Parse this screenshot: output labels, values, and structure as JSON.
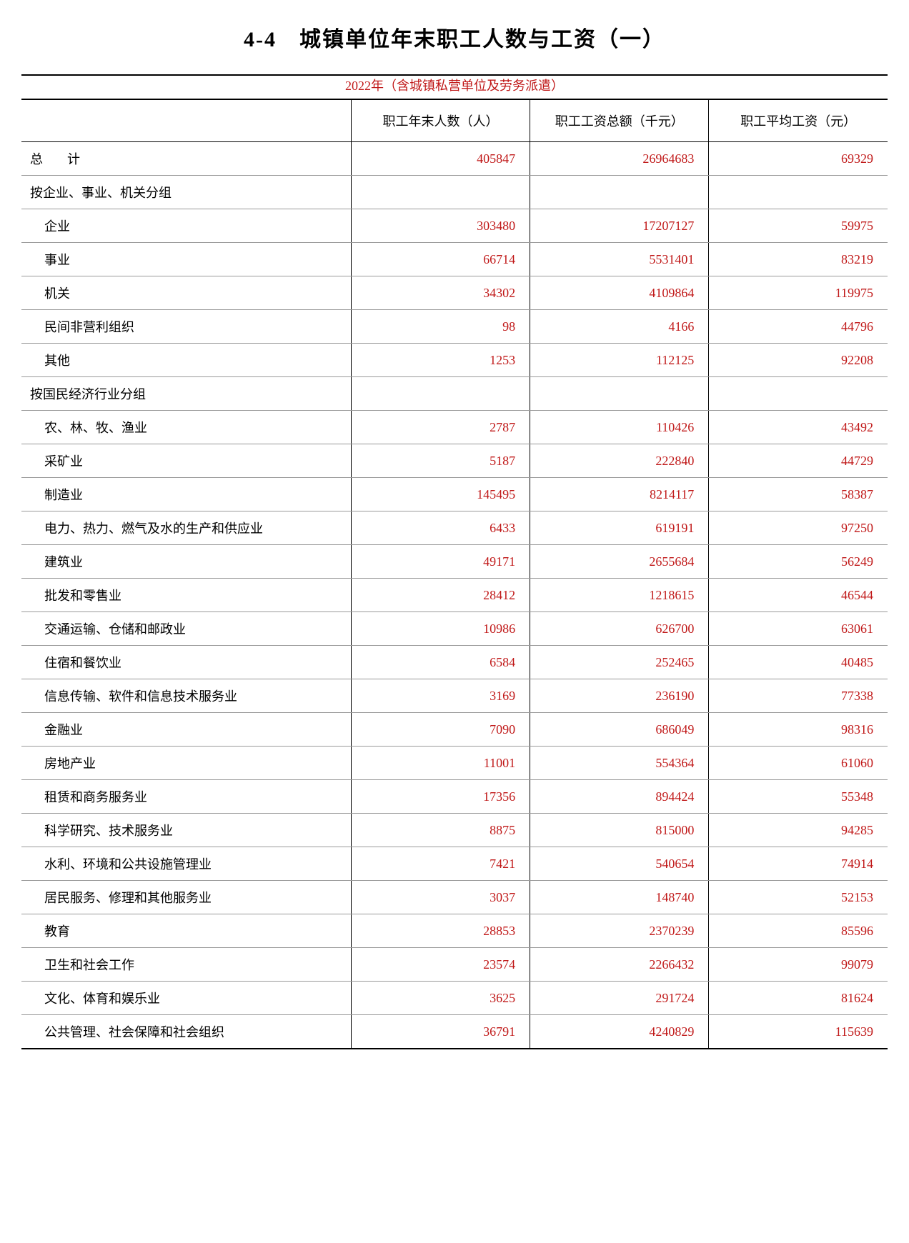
{
  "title": "4-4　城镇单位年末职工人数与工资（一）",
  "subtitle": "2022年（含城镇私营单位及劳务派遣）",
  "columns": {
    "c0": "",
    "c1": "职工年末人数（人）",
    "c2": "职工工资总额（千元）",
    "c3": "职工平均工资（元）"
  },
  "rows": [
    {
      "label": "总　计",
      "indent": 0,
      "cls": "total-label",
      "v1": "405847",
      "v2": "26964683",
      "v3": "69329"
    },
    {
      "label": "按企业、事业、机关分组",
      "indent": 0,
      "v1": "",
      "v2": "",
      "v3": ""
    },
    {
      "label": "企业",
      "indent": 1,
      "v1": "303480",
      "v2": "17207127",
      "v3": "59975"
    },
    {
      "label": "事业",
      "indent": 1,
      "v1": "66714",
      "v2": "5531401",
      "v3": "83219"
    },
    {
      "label": "机关",
      "indent": 1,
      "v1": "34302",
      "v2": "4109864",
      "v3": "119975"
    },
    {
      "label": "民间非营利组织",
      "indent": 1,
      "v1": "98",
      "v2": "4166",
      "v3": "44796"
    },
    {
      "label": "其他",
      "indent": 1,
      "v1": "1253",
      "v2": "112125",
      "v3": "92208"
    },
    {
      "label": "按国民经济行业分组",
      "indent": 0,
      "v1": "",
      "v2": "",
      "v3": ""
    },
    {
      "label": "农、林、牧、渔业",
      "indent": 1,
      "v1": "2787",
      "v2": "110426",
      "v3": "43492"
    },
    {
      "label": "采矿业",
      "indent": 1,
      "v1": "5187",
      "v2": "222840",
      "v3": "44729"
    },
    {
      "label": "制造业",
      "indent": 1,
      "v1": "145495",
      "v2": "8214117",
      "v3": "58387"
    },
    {
      "label": "电力、热力、燃气及水的生产和供应业",
      "indent": 1,
      "v1": "6433",
      "v2": "619191",
      "v3": "97250"
    },
    {
      "label": "建筑业",
      "indent": 1,
      "v1": "49171",
      "v2": "2655684",
      "v3": "56249"
    },
    {
      "label": "批发和零售业",
      "indent": 1,
      "v1": "28412",
      "v2": "1218615",
      "v3": "46544"
    },
    {
      "label": "交通运输、仓储和邮政业",
      "indent": 1,
      "v1": "10986",
      "v2": "626700",
      "v3": "63061"
    },
    {
      "label": "住宿和餐饮业",
      "indent": 1,
      "v1": "6584",
      "v2": "252465",
      "v3": "40485"
    },
    {
      "label": "信息传输、软件和信息技术服务业",
      "indent": 1,
      "v1": "3169",
      "v2": "236190",
      "v3": "77338"
    },
    {
      "label": "金融业",
      "indent": 1,
      "v1": "7090",
      "v2": "686049",
      "v3": "98316"
    },
    {
      "label": "房地产业",
      "indent": 1,
      "v1": "11001",
      "v2": "554364",
      "v3": "61060"
    },
    {
      "label": "租赁和商务服务业",
      "indent": 1,
      "v1": "17356",
      "v2": "894424",
      "v3": "55348"
    },
    {
      "label": "科学研究、技术服务业",
      "indent": 1,
      "v1": "8875",
      "v2": "815000",
      "v3": "94285"
    },
    {
      "label": "水利、环境和公共设施管理业",
      "indent": 1,
      "v1": "7421",
      "v2": "540654",
      "v3": "74914"
    },
    {
      "label": "居民服务、修理和其他服务业",
      "indent": 1,
      "v1": "3037",
      "v2": "148740",
      "v3": "52153"
    },
    {
      "label": "教育",
      "indent": 1,
      "v1": "28853",
      "v2": "2370239",
      "v3": "85596"
    },
    {
      "label": "卫生和社会工作",
      "indent": 1,
      "v1": "23574",
      "v2": "2266432",
      "v3": "99079"
    },
    {
      "label": "文化、体育和娱乐业",
      "indent": 1,
      "v1": "3625",
      "v2": "291724",
      "v3": "81624"
    },
    {
      "label": "公共管理、社会保障和社会组织",
      "indent": 1,
      "v1": "36791",
      "v2": "4240829",
      "v3": "115639"
    }
  ]
}
